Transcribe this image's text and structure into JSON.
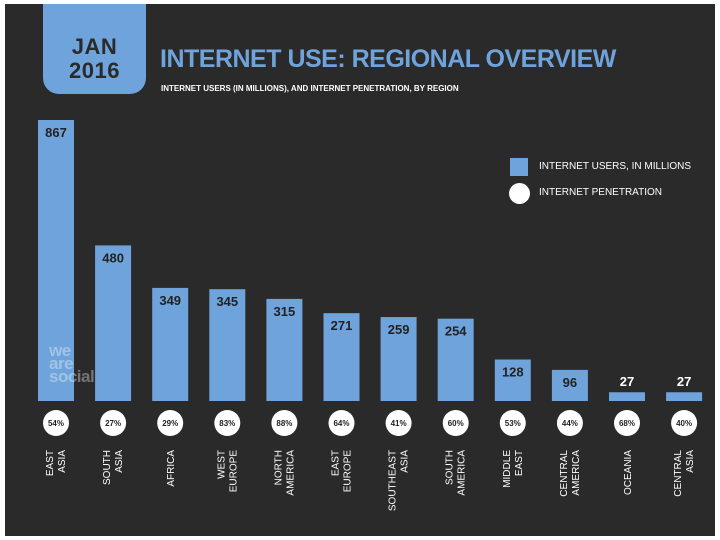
{
  "header": {
    "date_month": "JAN",
    "date_year": "2016",
    "title": "INTERNET USE: REGIONAL OVERVIEW",
    "subtitle": "INTERNET USERS (IN MILLIONS), AND INTERNET PENETRATION, BY REGION"
  },
  "legend": {
    "users_label": "INTERNET USERS, IN MILLIONS",
    "penetration_label": "INTERNET PENETRATION"
  },
  "watermark": {
    "line1": "we",
    "line2": "are",
    "line3": "social"
  },
  "colors": {
    "background": "#2b2a2a",
    "accent": "#6fa3db",
    "text": "#ffffff",
    "circle_text": "#222222"
  },
  "chart_data": {
    "type": "bar",
    "title": "INTERNET USE: REGIONAL OVERVIEW",
    "subtitle": "INTERNET USERS (IN MILLIONS), AND INTERNET PENETRATION, BY REGION",
    "categories": [
      [
        "EAST",
        "ASIA"
      ],
      [
        "SOUTH",
        "ASIA"
      ],
      [
        "AFRICA"
      ],
      [
        "WEST",
        "EUROPE"
      ],
      [
        "NORTH",
        "AMERICA"
      ],
      [
        "EAST",
        "EUROPE"
      ],
      [
        "SOUTHEAST",
        "ASIA"
      ],
      [
        "SOUTH",
        "AMERICA"
      ],
      [
        "MIDDLE",
        "EAST"
      ],
      [
        "CENTRAL",
        "AMERICA"
      ],
      [
        "OCEANIA"
      ],
      [
        "CENTRAL",
        "ASIA"
      ]
    ],
    "series": [
      {
        "name": "INTERNET USERS, IN MILLIONS",
        "values": [
          867,
          480,
          349,
          345,
          315,
          271,
          259,
          254,
          128,
          96,
          27,
          27
        ]
      },
      {
        "name": "INTERNET PENETRATION",
        "values": [
          "54%",
          "27%",
          "29%",
          "83%",
          "88%",
          "64%",
          "41%",
          "60%",
          "53%",
          "44%",
          "68%",
          "40%"
        ]
      }
    ],
    "ylim": [
      0,
      867
    ],
    "legend_position": "top-right",
    "grid": false
  }
}
